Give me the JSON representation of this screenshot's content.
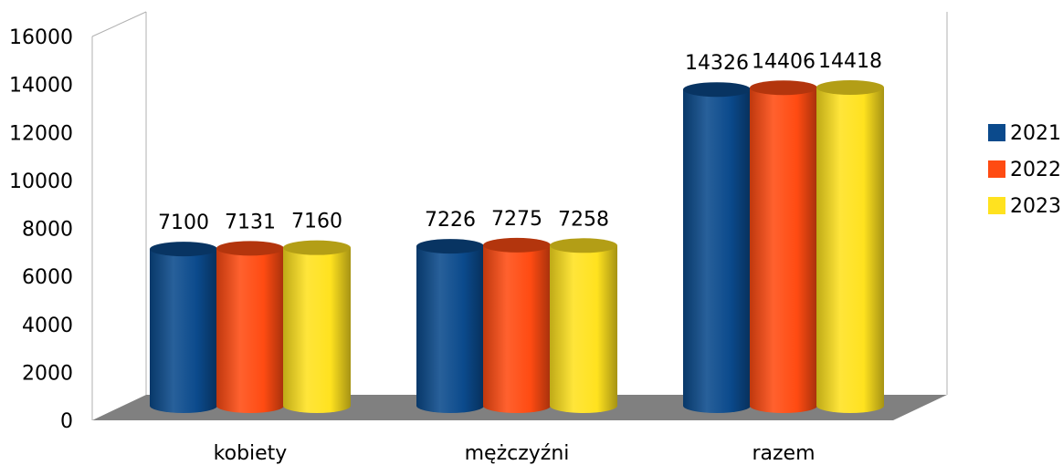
{
  "chart_data": {
    "type": "bar",
    "style": "3d-cylinder",
    "categories": [
      "kobiety",
      "mężczyźni",
      "razem"
    ],
    "series": [
      {
        "name": "2021",
        "values": [
          7100,
          7226,
          14326
        ],
        "color": "#0B4A8C"
      },
      {
        "name": "2022",
        "values": [
          7131,
          7275,
          14406
        ],
        "color": "#FF4B12"
      },
      {
        "name": "2023",
        "values": [
          7160,
          7258,
          14418
        ],
        "color": "#FFE21F"
      }
    ],
    "ylim": [
      0,
      16000
    ],
    "yticks": [
      "0",
      "2000",
      "4000",
      "6000",
      "8000",
      "10000",
      "12000",
      "14000",
      "16000"
    ],
    "data_labels": true,
    "grid": false,
    "legend_position": "right",
    "floor_color": "#808080"
  }
}
